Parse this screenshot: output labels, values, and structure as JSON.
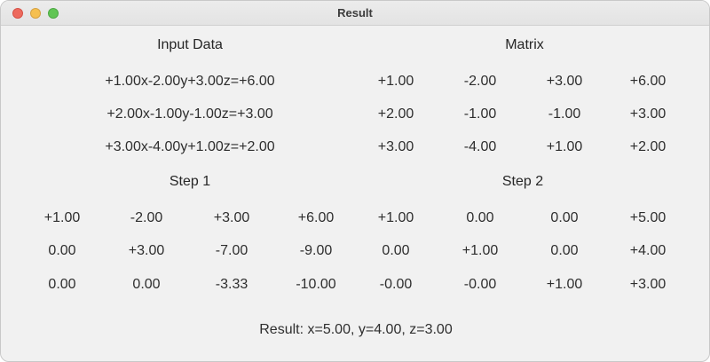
{
  "window": {
    "title": "Result"
  },
  "input": {
    "heading": "Input Data",
    "equations": [
      "+1.00x-2.00y+3.00z=+6.00",
      "+2.00x-1.00y-1.00z=+3.00",
      "+3.00x-4.00y+1.00z=+2.00"
    ]
  },
  "matrix": {
    "heading": "Matrix",
    "rows": [
      [
        "+1.00",
        "-2.00",
        "+3.00",
        "+6.00"
      ],
      [
        "+2.00",
        "-1.00",
        "-1.00",
        "+3.00"
      ],
      [
        "+3.00",
        "-4.00",
        "+1.00",
        "+2.00"
      ]
    ]
  },
  "step1": {
    "heading": "Step 1",
    "rows": [
      [
        "+1.00",
        "-2.00",
        "+3.00",
        "+6.00"
      ],
      [
        "0.00",
        "+3.00",
        "-7.00",
        "-9.00"
      ],
      [
        "0.00",
        "0.00",
        "-3.33",
        "-10.00"
      ]
    ]
  },
  "step2": {
    "heading": "Step 2",
    "rows": [
      [
        "+1.00",
        "0.00",
        "0.00",
        "+5.00"
      ],
      [
        "0.00",
        "+1.00",
        "0.00",
        "+4.00"
      ],
      [
        "-0.00",
        "-0.00",
        "+1.00",
        "+3.00"
      ]
    ]
  },
  "result": {
    "text": "Result: x=5.00, y=4.00, z=3.00"
  }
}
